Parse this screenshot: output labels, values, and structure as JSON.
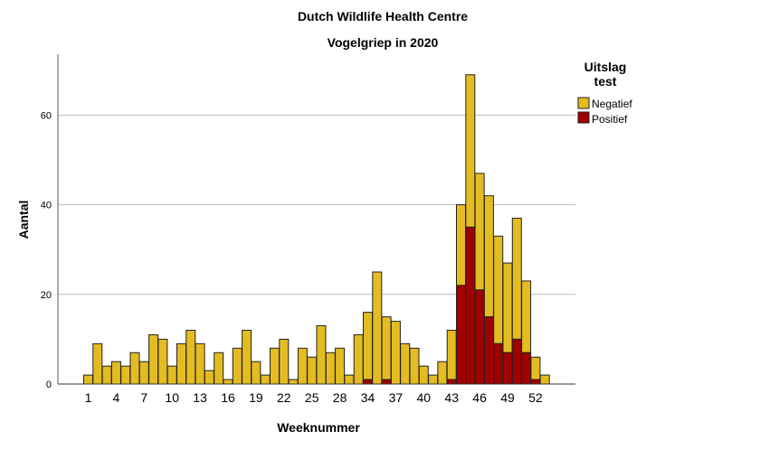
{
  "chart_data": {
    "type": "bar",
    "stacked": true,
    "title": "Dutch Wildlife Health Centre",
    "subtitle": "Vogelgriep in 2020",
    "xlabel": "Weeknummer",
    "ylabel": "Aantal",
    "ylim": [
      0,
      73
    ],
    "yticks": [
      0,
      20,
      40,
      60
    ],
    "grid": true,
    "legend": {
      "title_line1": "Uitslag",
      "title_line2": "test",
      "placement": "right"
    },
    "categories": [
      "1",
      "2",
      "3",
      "4",
      "5",
      "6",
      "7",
      "8",
      "9",
      "10",
      "11",
      "12",
      "13",
      "14",
      "15",
      "16",
      "17",
      "18",
      "19",
      "20",
      "21",
      "22",
      "23",
      "24",
      "25",
      "26",
      "27",
      "28",
      "32",
      "33",
      "34",
      "35",
      "36",
      "37",
      "38",
      "39",
      "40",
      "41",
      "42",
      "43",
      "44",
      "45",
      "46",
      "47",
      "48",
      "49",
      "50",
      "51",
      "52",
      "53"
    ],
    "xtick_labels": [
      "1",
      "4",
      "7",
      "10",
      "13",
      "16",
      "19",
      "22",
      "25",
      "28",
      "34",
      "37",
      "40",
      "43",
      "46",
      "49",
      "52"
    ],
    "series": [
      {
        "name": "Positief",
        "color": "#a00000",
        "values": [
          0,
          0,
          0,
          0,
          0,
          0,
          0,
          0,
          0,
          0,
          0,
          0,
          0,
          0,
          0,
          0,
          0,
          0,
          0,
          0,
          0,
          0,
          0,
          0,
          0,
          0,
          0,
          0,
          0,
          0,
          1,
          0,
          1,
          0,
          0,
          0,
          0,
          0,
          0,
          1,
          22,
          35,
          21,
          15,
          9,
          7,
          10,
          7,
          1,
          0
        ]
      },
      {
        "name": "Negatief",
        "color": "#e3bc21",
        "values": [
          2,
          9,
          4,
          5,
          4,
          7,
          5,
          11,
          10,
          4,
          9,
          12,
          9,
          3,
          7,
          1,
          8,
          12,
          5,
          2,
          8,
          10,
          1,
          8,
          6,
          13,
          7,
          8,
          2,
          11,
          15,
          25,
          14,
          14,
          9,
          8,
          4,
          2,
          5,
          11,
          18,
          34,
          26,
          27,
          24,
          20,
          27,
          16,
          5,
          2
        ]
      }
    ]
  }
}
